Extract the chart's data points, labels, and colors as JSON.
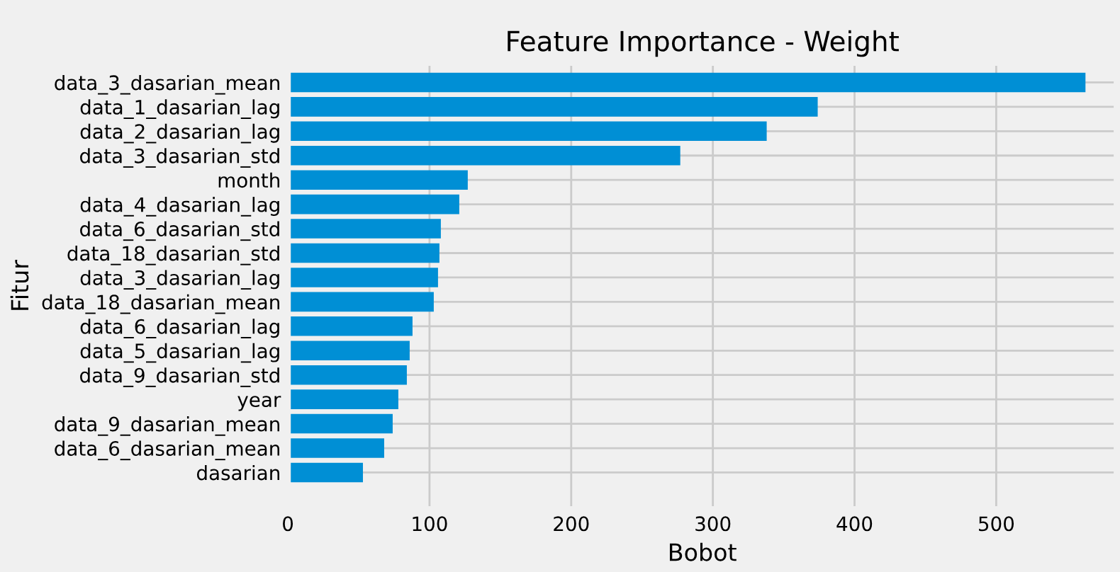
{
  "chart_data": {
    "type": "bar",
    "orientation": "horizontal",
    "title": "Feature Importance - Weight",
    "xlabel": "Bobot",
    "ylabel": "Fitur",
    "categories": [
      "data_3_dasarian_mean",
      "data_1_dasarian_lag",
      "data_2_dasarian_lag",
      "data_3_dasarian_std",
      "month",
      "data_4_dasarian_lag",
      "data_6_dasarian_std",
      "data_18_dasarian_std",
      "data_3_dasarian_lag",
      "data_18_dasarian_mean",
      "data_6_dasarian_lag",
      "data_5_dasarian_lag",
      "data_9_dasarian_std",
      "year",
      "data_9_dasarian_mean",
      "data_6_dasarian_mean",
      "dasarian"
    ],
    "values": [
      563,
      374,
      338,
      277,
      127,
      121,
      108,
      107,
      106,
      103,
      88,
      86,
      84,
      78,
      74,
      68,
      53
    ],
    "color": "#008fd5",
    "xlim": [
      0,
      585
    ],
    "xticks": [
      0,
      100,
      200,
      300,
      400,
      500
    ],
    "grid": true
  }
}
